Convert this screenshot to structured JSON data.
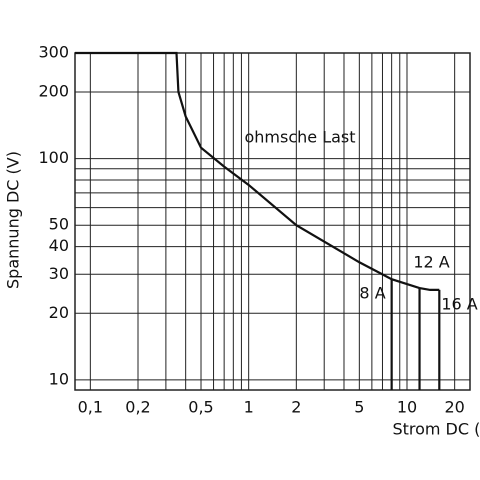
{
  "chart_data": {
    "type": "line",
    "ylabel": "Spannung DC (V)",
    "xlabel": "Strom DC (A)",
    "annotation": "ohmsche Last",
    "log_x": true,
    "log_y": true,
    "grid": true,
    "color": "#111111",
    "xlim": [
      0.08,
      25
    ],
    "ylim": [
      9,
      300
    ],
    "xticks": [
      {
        "value": 0.1,
        "label": "0,1"
      },
      {
        "value": 0.2,
        "label": "0,2"
      },
      {
        "value": 0.5,
        "label": "0,5"
      },
      1,
      2,
      5,
      10,
      20
    ],
    "yticks": [
      10,
      20,
      30,
      40,
      50,
      100,
      200,
      300
    ],
    "x_minor_grid": [
      0.3,
      0.4,
      0.6,
      0.7,
      0.8,
      0.9,
      3,
      4,
      6,
      7,
      8,
      9
    ],
    "y_minor_grid": [
      60,
      70,
      80,
      90
    ],
    "series": [
      {
        "x": [
          0.08,
          0.35,
          0.36,
          0.4,
          0.5,
          0.7,
          1,
          2,
          5,
          8,
          12,
          14,
          16
        ],
        "values": [
          300,
          300,
          200,
          155,
          112,
          92,
          76,
          50,
          34,
          28.5,
          26,
          25.5,
          25.5
        ]
      },
      {
        "name": "8 A",
        "x": [
          8,
          8
        ],
        "values": [
          28.5,
          9
        ]
      },
      {
        "name": "12 A",
        "x": [
          12,
          12
        ],
        "values": [
          26,
          9
        ]
      },
      {
        "name": "16 A",
        "x": [
          16,
          16
        ],
        "values": [
          25.5,
          9
        ]
      }
    ]
  }
}
